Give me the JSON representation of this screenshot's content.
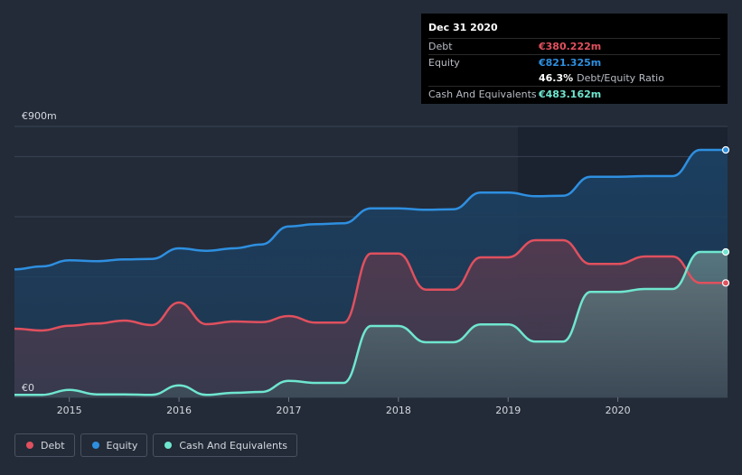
{
  "tooltip": {
    "title": "Dec 31 2020",
    "debt_label": "Debt",
    "debt_value": "€380.222m",
    "equity_label": "Equity",
    "equity_value": "€821.325m",
    "ratio_value": "46.3%",
    "ratio_label": "Debt/Equity Ratio",
    "cash_label": "Cash And Equivalents",
    "cash_value": "€483.162m"
  },
  "legend": {
    "debt": "Debt",
    "equity": "Equity",
    "cash": "Cash And Equivalents"
  },
  "colors": {
    "debt": "#e0505e",
    "equity": "#2e8fe0",
    "cash": "#6fe6cf",
    "background": "#232b38"
  },
  "chart_data": {
    "type": "area",
    "y_unit": "€m",
    "ylim": [
      0,
      900
    ],
    "xlim": [
      2014.5,
      2021.0
    ],
    "y_tick_labels": [
      {
        "value": 900,
        "label": "€900m"
      },
      {
        "value": 0,
        "label": "€0"
      }
    ],
    "x_ticks": [
      2015,
      2016,
      2017,
      2018,
      2019,
      2020
    ],
    "grid": true,
    "series": [
      {
        "name": "Equity",
        "key": "equity",
        "points": [
          [
            2014.5,
            425
          ],
          [
            2014.75,
            435
          ],
          [
            2015.0,
            455
          ],
          [
            2015.25,
            452
          ],
          [
            2015.5,
            458
          ],
          [
            2015.75,
            460
          ],
          [
            2016.0,
            495
          ],
          [
            2016.25,
            487
          ],
          [
            2016.5,
            495
          ],
          [
            2016.75,
            508
          ],
          [
            2017.0,
            568
          ],
          [
            2017.25,
            575
          ],
          [
            2017.5,
            578
          ],
          [
            2017.75,
            628
          ],
          [
            2018.0,
            628
          ],
          [
            2018.25,
            623
          ],
          [
            2018.5,
            625
          ],
          [
            2018.75,
            680
          ],
          [
            2019.0,
            680
          ],
          [
            2019.25,
            668
          ],
          [
            2019.5,
            670
          ],
          [
            2019.75,
            733
          ],
          [
            2020.0,
            733
          ],
          [
            2020.25,
            735
          ],
          [
            2020.5,
            735
          ],
          [
            2020.75,
            822
          ],
          [
            2021.0,
            822
          ]
        ]
      },
      {
        "name": "Debt",
        "key": "debt",
        "points": [
          [
            2014.5,
            228
          ],
          [
            2014.75,
            222
          ],
          [
            2015.0,
            238
          ],
          [
            2015.25,
            245
          ],
          [
            2015.5,
            255
          ],
          [
            2015.75,
            240
          ],
          [
            2016.0,
            315
          ],
          [
            2016.25,
            243
          ],
          [
            2016.5,
            252
          ],
          [
            2016.75,
            250
          ],
          [
            2017.0,
            270
          ],
          [
            2017.25,
            248
          ],
          [
            2017.5,
            248
          ],
          [
            2017.75,
            478
          ],
          [
            2018.0,
            478
          ],
          [
            2018.25,
            358
          ],
          [
            2018.5,
            358
          ],
          [
            2018.75,
            465
          ],
          [
            2019.0,
            465
          ],
          [
            2019.25,
            522
          ],
          [
            2019.5,
            522
          ],
          [
            2019.75,
            443
          ],
          [
            2020.0,
            443
          ],
          [
            2020.25,
            468
          ],
          [
            2020.5,
            468
          ],
          [
            2020.75,
            380
          ],
          [
            2021.0,
            380
          ]
        ]
      },
      {
        "name": "Cash And Equivalents",
        "key": "cash",
        "points": [
          [
            2014.5,
            8
          ],
          [
            2014.75,
            8
          ],
          [
            2015.0,
            25
          ],
          [
            2015.25,
            10
          ],
          [
            2015.5,
            10
          ],
          [
            2015.75,
            8
          ],
          [
            2016.0,
            40
          ],
          [
            2016.25,
            8
          ],
          [
            2016.5,
            15
          ],
          [
            2016.75,
            18
          ],
          [
            2017.0,
            55
          ],
          [
            2017.25,
            48
          ],
          [
            2017.5,
            48
          ],
          [
            2017.75,
            237
          ],
          [
            2018.0,
            237
          ],
          [
            2018.25,
            183
          ],
          [
            2018.5,
            183
          ],
          [
            2018.75,
            242
          ],
          [
            2019.0,
            242
          ],
          [
            2019.25,
            185
          ],
          [
            2019.5,
            185
          ],
          [
            2019.75,
            350
          ],
          [
            2020.0,
            350
          ],
          [
            2020.25,
            360
          ],
          [
            2020.5,
            360
          ],
          [
            2020.75,
            483
          ],
          [
            2021.0,
            483
          ]
        ]
      }
    ]
  }
}
